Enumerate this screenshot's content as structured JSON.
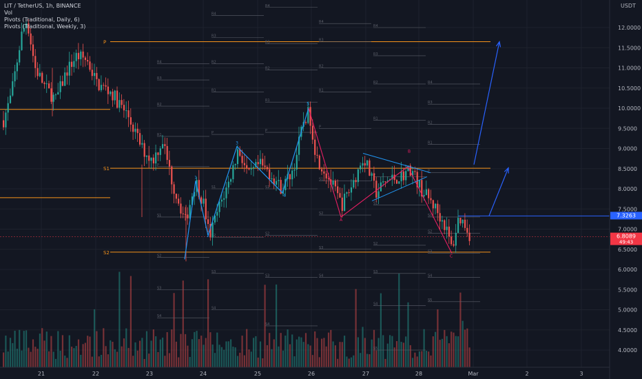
{
  "legend": {
    "symbol": "LIT / TetherUS, 1h, BINANCE",
    "vol": "Vol",
    "pivots_daily": "Pivots (Traditional, Daily, 6)",
    "pivots_weekly": "Pivots (Traditional, Weekly, 3)"
  },
  "currency": "USDT",
  "chart_data": {
    "type": "candlestick",
    "x_ticks": [
      "21",
      "22",
      "23",
      "24",
      "25",
      "26",
      "27",
      "28",
      "Mar",
      "2",
      "3"
    ],
    "y_ticks": [
      "12.0000",
      "11.5000",
      "11.0000",
      "10.5000",
      "10.0000",
      "9.5000",
      "9.0000",
      "8.5000",
      "8.0000",
      "7.5000",
      "7.0000",
      "6.5000",
      "6.0000",
      "5.5000",
      "5.0000",
      "4.5000",
      "4.0000"
    ],
    "price_labels": [
      {
        "value": "7.3263",
        "color": "#2962ff"
      },
      {
        "value": "6.8089",
        "sub": "49:43",
        "color": "#f23645"
      }
    ],
    "weekly_pivots": [
      {
        "label": "P",
        "value": 11.65
      },
      {
        "label": "S1",
        "value": 8.51
      },
      {
        "label": "S2",
        "value": 6.43
      }
    ],
    "wave_labels": [
      {
        "text": "1",
        "x": "23.85",
        "y": 8.25
      },
      {
        "text": "2",
        "x": "24.1",
        "y": 6.8
      },
      {
        "text": "3",
        "x": "24.6",
        "y": 9.1
      },
      {
        "text": "4",
        "x": "25.5",
        "y": 7.8
      },
      {
        "text": "5",
        "x": "25.95",
        "y": 10.08
      },
      {
        "text": "A",
        "x": "26.55",
        "y": 7.2
      },
      {
        "text": "B",
        "x": "27.85",
        "y": 8.9
      },
      {
        "text": "C",
        "x": "28.35",
        "y": 6.3
      }
    ],
    "daily_pivot_labels": [
      "R4",
      "R3",
      "R2",
      "R1",
      "P",
      "S1",
      "S2",
      "S3",
      "S4",
      "S5"
    ]
  }
}
